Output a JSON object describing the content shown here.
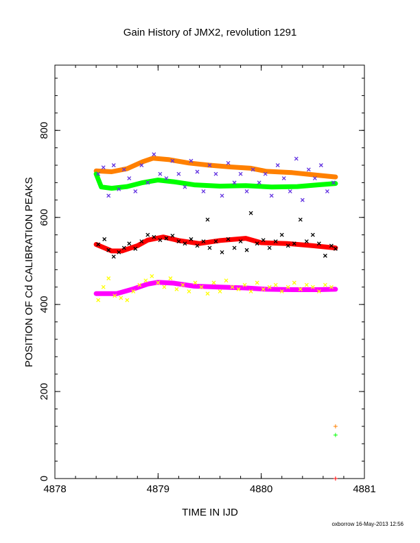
{
  "chart_data": {
    "type": "scatter",
    "title": "Gain History of JMX2, revolution 1291",
    "xlabel": "TIME IN IJD",
    "ylabel": "POSITION OF Cd CALIBRATION PEAKS",
    "xlim": [
      4878,
      4881
    ],
    "ylim": [
      0,
      950
    ],
    "x_ticks": [
      "4878",
      "4879",
      "4880",
      "4881"
    ],
    "y_ticks": [
      "0",
      "200",
      "400",
      "600",
      "800"
    ],
    "grid": false,
    "footer": "oxborrow 16-May-2013 12:56",
    "series": [
      {
        "color": "#ff8000",
        "marker": "thick-line",
        "x": [
          4878.4,
          4878.55,
          4878.7,
          4878.85,
          4878.95,
          4879.1,
          4879.3,
          4879.5,
          4879.7,
          4879.9,
          4880.05,
          4880.3,
          4880.55,
          4880.72
        ],
        "y": [
          707,
          705,
          712,
          728,
          736,
          733,
          725,
          720,
          716,
          713,
          706,
          703,
          697,
          693
        ]
      },
      {
        "color": "#00ff00",
        "marker": "thick-line",
        "x": [
          4878.4,
          4878.45,
          4878.55,
          4878.7,
          4878.85,
          4879.0,
          4879.15,
          4879.35,
          4879.6,
          4879.85,
          4880.1,
          4880.35,
          4880.55,
          4880.72
        ],
        "y": [
          700,
          670,
          667,
          671,
          680,
          686,
          682,
          675,
          672,
          673,
          670,
          671,
          675,
          678
        ]
      },
      {
        "color": "#ff0000",
        "marker": "thick-line",
        "x": [
          4878.4,
          4878.55,
          4878.65,
          4878.8,
          4878.9,
          4879.05,
          4879.2,
          4879.4,
          4879.6,
          4879.85,
          4880.0,
          4880.25,
          4880.5,
          4880.72
        ],
        "y": [
          538,
          523,
          523,
          535,
          548,
          555,
          547,
          540,
          547,
          552,
          542,
          540,
          535,
          530
        ]
      },
      {
        "color": "#ff00ff",
        "marker": "thick-line",
        "x": [
          4878.4,
          4878.6,
          4878.75,
          4878.9,
          4879.0,
          4879.15,
          4879.35,
          4879.6,
          4879.85,
          4880.05,
          4880.3,
          4880.55,
          4880.72
        ],
        "y": [
          425,
          425,
          435,
          447,
          451,
          449,
          442,
          440,
          438,
          435,
          434,
          434,
          435
        ]
      },
      {
        "color": "#000000",
        "marker": "x",
        "x": [
          4878.42,
          4878.48,
          4878.52,
          4878.57,
          4878.62,
          4878.67,
          4878.72,
          4878.78,
          4878.84,
          4878.9,
          4878.96,
          4879.02,
          4879.08,
          4879.14,
          4879.2,
          4879.26,
          4879.32,
          4879.38,
          4879.44,
          4879.48,
          4879.5,
          4879.56,
          4879.62,
          4879.68,
          4879.74,
          4879.8,
          4879.86,
          4879.9,
          4879.96,
          4880.02,
          4880.08,
          4880.14,
          4880.2,
          4880.26,
          4880.32,
          4880.38,
          4880.44,
          4880.5,
          4880.56,
          4880.62,
          4880.68,
          4880.72
        ],
        "y": [
          538,
          550,
          525,
          510,
          520,
          530,
          540,
          528,
          545,
          560,
          555,
          548,
          552,
          558,
          545,
          540,
          550,
          535,
          545,
          595,
          530,
          545,
          520,
          550,
          530,
          545,
          525,
          610,
          540,
          548,
          530,
          545,
          560,
          535,
          540,
          595,
          545,
          560,
          540,
          512,
          535,
          528
        ]
      },
      {
        "color": "#ffff00",
        "marker": "x",
        "x": [
          4878.42,
          4878.47,
          4878.52,
          4878.58,
          4878.64,
          4878.7,
          4878.76,
          4878.82,
          4878.88,
          4878.94,
          4879.0,
          4879.06,
          4879.12,
          4879.18,
          4879.24,
          4879.3,
          4879.36,
          4879.42,
          4879.48,
          4879.54,
          4879.6,
          4879.66,
          4879.72,
          4879.78,
          4879.84,
          4879.9,
          4879.96,
          4880.02,
          4880.08,
          4880.14,
          4880.2,
          4880.26,
          4880.32,
          4880.38,
          4880.44,
          4880.5,
          4880.56,
          4880.62,
          4880.68
        ],
        "y": [
          410,
          440,
          460,
          420,
          415,
          410,
          430,
          445,
          455,
          465,
          450,
          440,
          460,
          435,
          445,
          430,
          450,
          440,
          425,
          450,
          430,
          455,
          440,
          435,
          445,
          430,
          450,
          435,
          440,
          445,
          430,
          440,
          450,
          435,
          445,
          440,
          430,
          445,
          440
        ]
      },
      {
        "color": "#6030e0",
        "marker": "x",
        "x": [
          4878.42,
          4878.47,
          4878.52,
          4878.57,
          4878.62,
          4878.67,
          4878.72,
          4878.78,
          4878.84,
          4878.9,
          4878.96,
          4879.02,
          4879.08,
          4879.14,
          4879.2,
          4879.26,
          4879.32,
          4879.38,
          4879.44,
          4879.5,
          4879.56,
          4879.62,
          4879.68,
          4879.74,
          4879.8,
          4879.86,
          4879.92,
          4879.98,
          4880.04,
          4880.1,
          4880.16,
          4880.22,
          4880.28,
          4880.34,
          4880.4,
          4880.46,
          4880.52,
          4880.58,
          4880.64,
          4880.7
        ],
        "y": [
          700,
          715,
          650,
          720,
          665,
          710,
          690,
          660,
          720,
          680,
          745,
          700,
          690,
          730,
          700,
          670,
          730,
          705,
          660,
          720,
          700,
          650,
          725,
          680,
          700,
          660,
          710,
          680,
          700,
          650,
          720,
          690,
          660,
          735,
          640,
          710,
          690,
          720,
          660,
          680
        ]
      },
      {
        "color": "#ff8000",
        "marker": "+",
        "x": [
          4880.72
        ],
        "y": [
          120
        ]
      },
      {
        "color": "#00ff00",
        "marker": "+",
        "x": [
          4880.72
        ],
        "y": [
          100
        ]
      },
      {
        "color": "#ff0000",
        "marker": "+",
        "x": [
          4880.72
        ],
        "y": [
          0
        ]
      }
    ]
  }
}
